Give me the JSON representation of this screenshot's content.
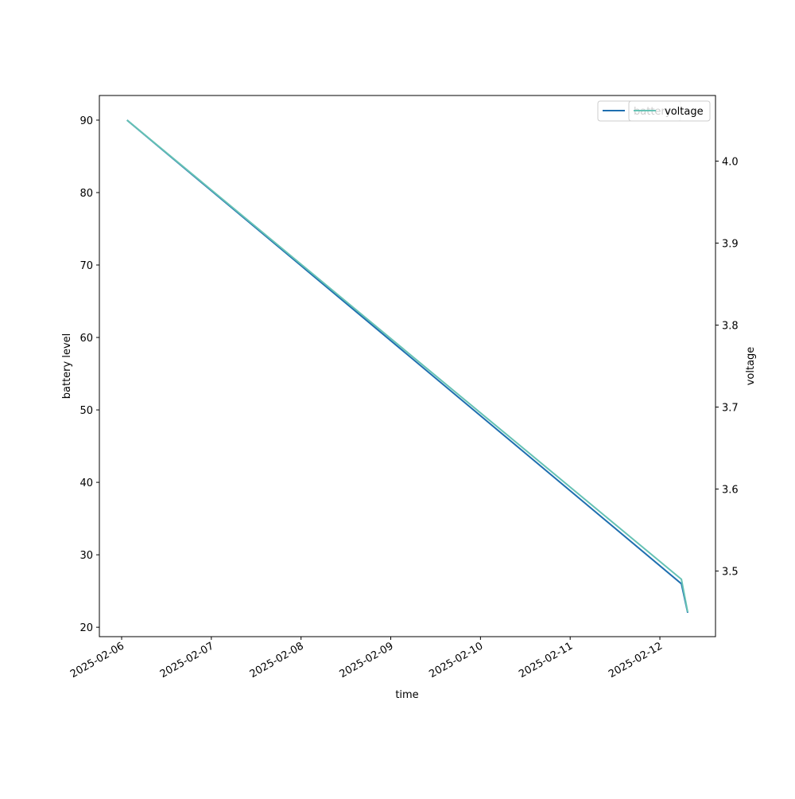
{
  "chart_data": {
    "type": "line",
    "x_label": "time",
    "y_label": "battery level",
    "y2_label": "voltage",
    "x": [
      0.06,
      6.24,
      6.31
    ],
    "series": [
      {
        "name": "battery",
        "color": "#1f6fb0",
        "values": [
          90,
          26,
          22
        ]
      },
      {
        "name": "voltage",
        "color": "#66c2b4",
        "values": [
          4.05,
          3.49,
          3.45
        ],
        "axis": "y2"
      }
    ],
    "xlim": [
      -0.248,
      6.62
    ],
    "xticks": [
      {
        "value": 0,
        "label": "2025-02-06"
      },
      {
        "value": 1,
        "label": "2025-02-07"
      },
      {
        "value": 2,
        "label": "2025-02-08"
      },
      {
        "value": 3,
        "label": "2025-02-09"
      },
      {
        "value": 4,
        "label": "2025-02-10"
      },
      {
        "value": 5,
        "label": "2025-02-11"
      },
      {
        "value": 6,
        "label": "2025-02-12"
      }
    ],
    "ylim": [
      18.7,
      93.4
    ],
    "yticks": [
      20,
      30,
      40,
      50,
      60,
      70,
      80,
      90
    ],
    "y2lim": [
      3.42,
      4.08
    ],
    "y2ticks": [
      {
        "value": 3.5,
        "label": "3.5"
      },
      {
        "value": 3.6,
        "label": "3.6"
      },
      {
        "value": 3.7,
        "label": "3.7"
      },
      {
        "value": 3.8,
        "label": "3.8"
      },
      {
        "value": 3.9,
        "label": "3.9"
      },
      {
        "value": 4.0,
        "label": "4.0"
      }
    ],
    "legend": "upper right"
  }
}
